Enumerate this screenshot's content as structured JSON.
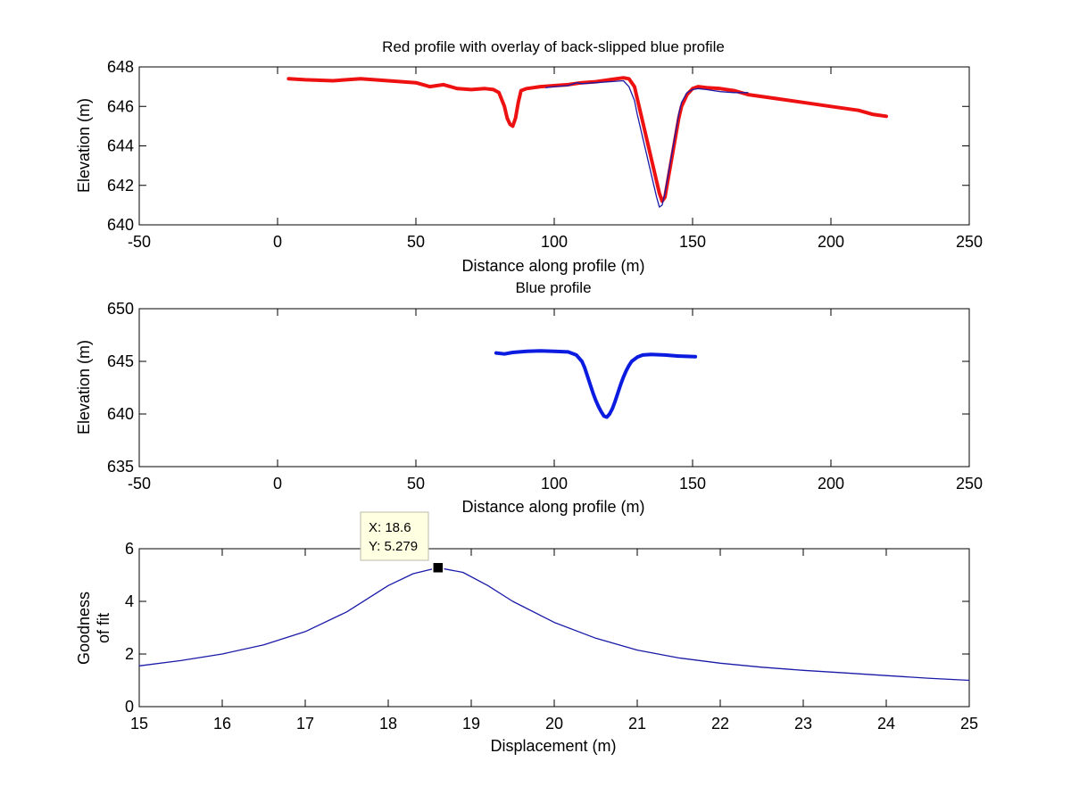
{
  "chart_data": [
    {
      "type": "line",
      "title": "Red profile with overlay of back-slipped blue profile",
      "xlabel": "Distance along profile (m)",
      "ylabel": "Elevation (m)",
      "xlim": [
        -50,
        250
      ],
      "ylim": [
        640,
        648
      ],
      "xticks": [
        -50,
        0,
        50,
        100,
        150,
        200,
        250
      ],
      "yticks": [
        640,
        642,
        644,
        646,
        648
      ],
      "grid": false,
      "series": [
        {
          "name": "Red profile",
          "color": "#ee1111",
          "style": "thick",
          "x": [
            4,
            10,
            20,
            30,
            40,
            50,
            55,
            60,
            65,
            70,
            75,
            78,
            80,
            82,
            83,
            84,
            85,
            86,
            87,
            88,
            90,
            95,
            100,
            105,
            110,
            115,
            120,
            125,
            127,
            129,
            130,
            131,
            132,
            133,
            134,
            135,
            136,
            137,
            138,
            139,
            140,
            141,
            142,
            143,
            144,
            145,
            146,
            148,
            150,
            152,
            155,
            160,
            165,
            170,
            180,
            190,
            200,
            210,
            215,
            220
          ],
          "y": [
            647.4,
            647.35,
            647.3,
            647.4,
            647.3,
            647.2,
            647.0,
            647.1,
            646.9,
            646.85,
            646.9,
            646.85,
            646.7,
            646.0,
            645.4,
            645.1,
            645.0,
            645.4,
            646.2,
            646.8,
            646.9,
            647.0,
            647.05,
            647.1,
            647.2,
            647.25,
            647.35,
            647.45,
            647.4,
            647.0,
            646.4,
            645.8,
            645.2,
            644.6,
            644.0,
            643.4,
            642.8,
            642.2,
            641.6,
            641.2,
            641.4,
            642.2,
            643.0,
            643.8,
            644.6,
            645.4,
            646.0,
            646.6,
            646.9,
            647.0,
            646.95,
            646.9,
            646.8,
            646.6,
            646.4,
            646.2,
            646.0,
            645.8,
            645.6,
            645.5
          ]
        },
        {
          "name": "Back-slipped blue profile",
          "color": "#1a1aa8",
          "style": "thin",
          "x": [
            97,
            100,
            105,
            108,
            110,
            115,
            120,
            125,
            127,
            129,
            130,
            131,
            132,
            133,
            134,
            135,
            136,
            137,
            138,
            139,
            140,
            141,
            142,
            143,
            144,
            145,
            146,
            148,
            150,
            152,
            155,
            160,
            165,
            170
          ],
          "y": [
            646.95,
            647.0,
            647.05,
            647.2,
            647.15,
            647.2,
            647.25,
            647.3,
            647.0,
            646.3,
            645.6,
            645.0,
            644.4,
            643.8,
            643.2,
            642.6,
            642.0,
            641.4,
            640.9,
            641.0,
            641.6,
            642.4,
            643.2,
            644.0,
            644.8,
            645.6,
            646.2,
            646.7,
            646.85,
            646.9,
            646.85,
            646.75,
            646.7,
            646.7
          ]
        }
      ]
    },
    {
      "type": "line",
      "title": "Blue profile",
      "xlabel": "Distance along profile (m)",
      "ylabel": "Elevation (m)",
      "xlim": [
        -50,
        250
      ],
      "ylim": [
        635,
        650
      ],
      "xticks": [
        -50,
        0,
        50,
        100,
        150,
        200,
        250
      ],
      "yticks": [
        635,
        640,
        645,
        650
      ],
      "grid": false,
      "series": [
        {
          "name": "Blue profile",
          "color": "#0b1be0",
          "style": "thick",
          "x": [
            79,
            82,
            85,
            90,
            95,
            100,
            105,
            108,
            110,
            111,
            112,
            113,
            114,
            115,
            116,
            117,
            118,
            119,
            120,
            121,
            122,
            123,
            124,
            125,
            126,
            127,
            128,
            130,
            132,
            135,
            140,
            145,
            151
          ],
          "y": [
            645.8,
            645.7,
            645.85,
            645.95,
            646.0,
            645.95,
            645.9,
            645.6,
            645.0,
            644.4,
            643.6,
            642.8,
            642.0,
            641.3,
            640.7,
            640.2,
            639.8,
            639.7,
            640.0,
            640.5,
            641.2,
            642.0,
            642.8,
            643.5,
            644.1,
            644.6,
            645.0,
            645.4,
            645.6,
            645.65,
            645.6,
            645.5,
            645.45
          ]
        }
      ]
    },
    {
      "type": "line",
      "title": "",
      "xlabel": "Displacement (m)",
      "ylabel_lines": [
        "Goodness",
        "of fit"
      ],
      "xlim": [
        15,
        25
      ],
      "ylim": [
        0,
        6
      ],
      "xticks": [
        15,
        16,
        17,
        18,
        19,
        20,
        21,
        22,
        23,
        24,
        25
      ],
      "yticks": [
        0,
        2,
        4,
        6
      ],
      "grid": false,
      "series": [
        {
          "name": "Goodness of fit",
          "color": "#1a1aa8",
          "style": "thin",
          "x": [
            15,
            15.5,
            16,
            16.5,
            17,
            17.5,
            18,
            18.3,
            18.6,
            18.9,
            19.2,
            19.5,
            20,
            20.5,
            21,
            21.5,
            22,
            22.5,
            23,
            23.5,
            24,
            24.5,
            25
          ],
          "y": [
            1.55,
            1.75,
            2.0,
            2.35,
            2.85,
            3.6,
            4.6,
            5.05,
            5.279,
            5.1,
            4.6,
            4.0,
            3.2,
            2.6,
            2.15,
            1.85,
            1.65,
            1.5,
            1.38,
            1.28,
            1.18,
            1.08,
            1.0
          ]
        }
      ],
      "datatip": {
        "x": 18.6,
        "y": 5.279,
        "label_x": "X: 18.6",
        "label_y": "Y: 5.279"
      }
    }
  ]
}
